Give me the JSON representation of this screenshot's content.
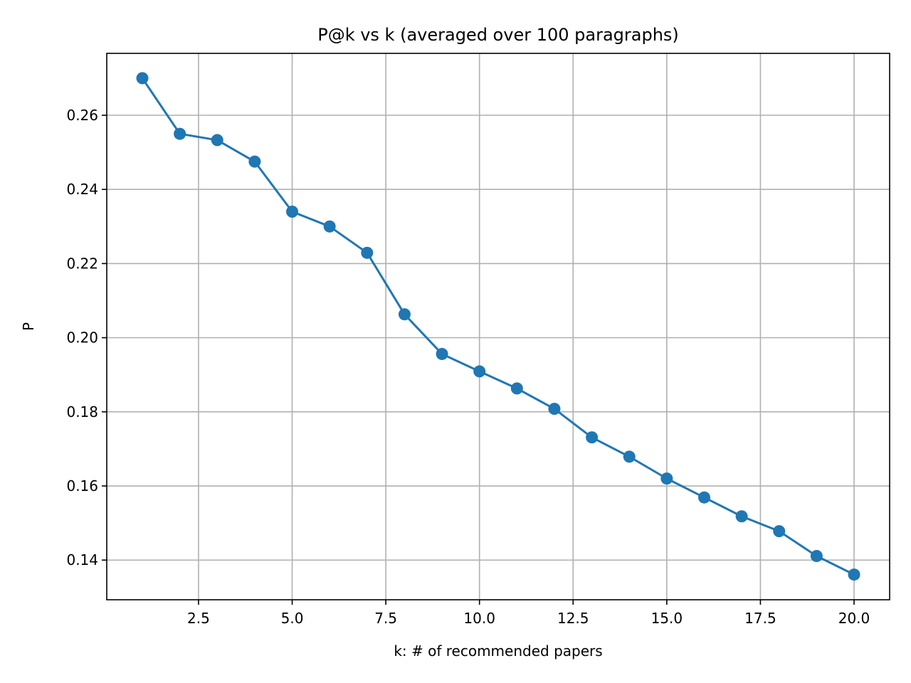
{
  "chart_data": {
    "type": "line",
    "title": "P@k vs k  (averaged over 100 paragraphs)",
    "xlabel": "k: # of recommended papers",
    "ylabel": "P",
    "xlim": [
      0.05,
      20.95
    ],
    "ylim": [
      0.1293,
      0.2767
    ],
    "xticks": [
      2.5,
      5.0,
      7.5,
      10.0,
      12.5,
      15.0,
      17.5,
      20.0
    ],
    "xtick_labels": [
      "2.5",
      "5.0",
      "7.5",
      "10.0",
      "12.5",
      "15.0",
      "17.5",
      "20.0"
    ],
    "yticks": [
      0.14,
      0.16,
      0.18,
      0.2,
      0.22,
      0.24,
      0.26
    ],
    "ytick_labels": [
      "0.14",
      "0.16",
      "0.18",
      "0.20",
      "0.22",
      "0.24",
      "0.26"
    ],
    "grid": true,
    "color": "#1f77b4",
    "series": [
      {
        "x": [
          1,
          2,
          3,
          4,
          5,
          6,
          7,
          8,
          9,
          10,
          11,
          12,
          13,
          14,
          15,
          16,
          17,
          18,
          19,
          20
        ],
        "values": [
          0.27,
          0.255,
          0.2533,
          0.2475,
          0.234,
          0.23,
          0.2229,
          0.2063,
          0.1956,
          0.1909,
          0.1863,
          0.1808,
          0.1731,
          0.1679,
          0.162,
          0.1569,
          0.1518,
          0.1478,
          0.1411,
          0.1361
        ]
      }
    ]
  }
}
